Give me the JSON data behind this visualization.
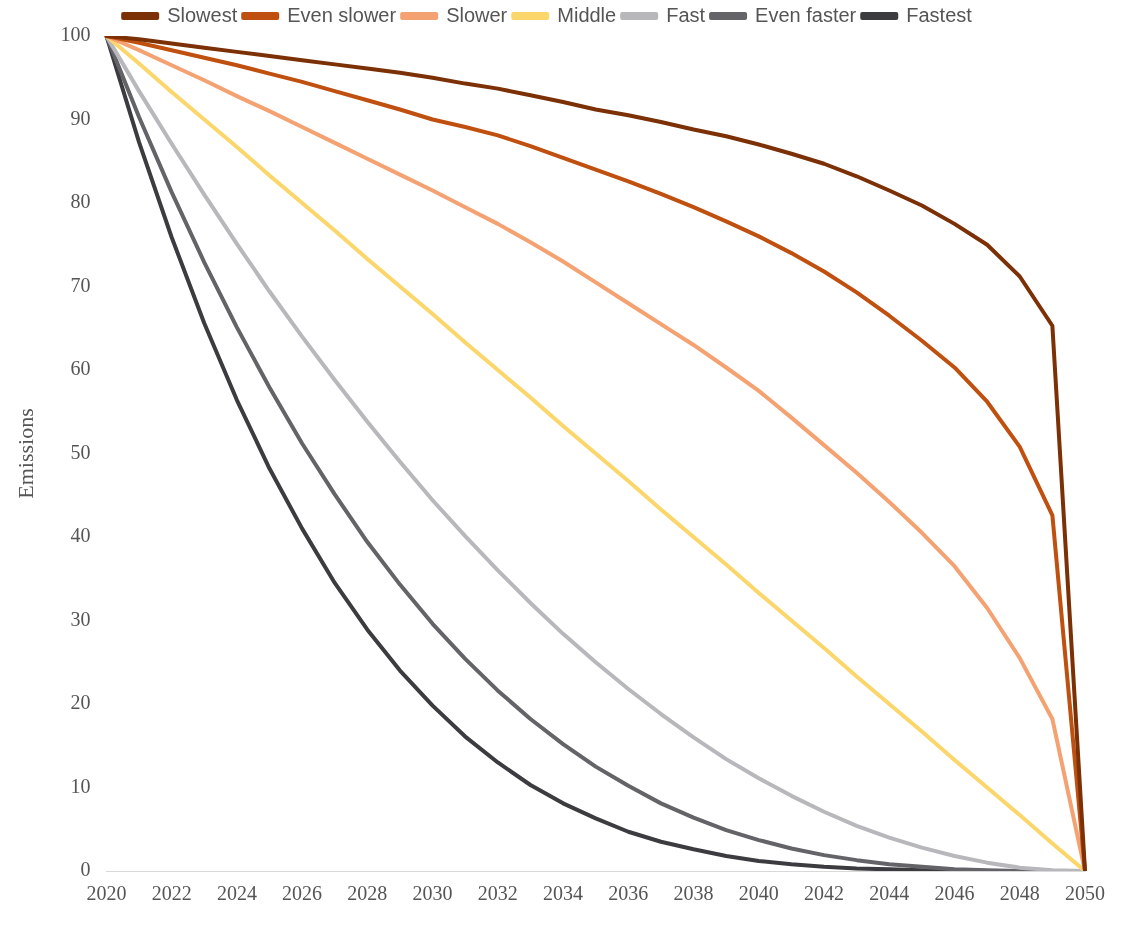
{
  "chart_data": {
    "type": "line",
    "ylabel": "Emissions",
    "categories": [
      "2020",
      null,
      "2022",
      null,
      "2024",
      null,
      "2026",
      null,
      "2028",
      null,
      "2030",
      null,
      "2032",
      null,
      "2034",
      null,
      "2036",
      null,
      "2038",
      null,
      "2040",
      null,
      "2042",
      null,
      "2044",
      null,
      "2046",
      null,
      "2048",
      null,
      "2050"
    ],
    "ylim": [
      0,
      100
    ],
    "yticks": [
      0,
      10,
      20,
      30,
      40,
      50,
      60,
      70,
      80,
      90,
      100
    ],
    "grid": false,
    "legend": "top",
    "marker": "none",
    "line_style": "solid",
    "series": [
      {
        "name": "Slowest",
        "color": "#7b3006",
        "values": [
          100,
          99.6,
          99.1,
          98.6,
          98.1,
          97.6,
          97.1,
          96.6,
          96.1,
          95.6,
          95,
          94.3,
          93.7,
          92.9,
          92.1,
          91.2,
          90.5,
          89.7,
          88.8,
          88,
          87,
          85.9,
          84.7,
          83.2,
          81.5,
          79.7,
          77.5,
          75,
          71.2,
          65.3,
          0
        ]
      },
      {
        "name": "Even slower",
        "color": "#c0500f",
        "values": [
          100,
          99.2,
          98.3,
          97.4,
          96.5,
          95.5,
          94.5,
          93.4,
          92.3,
          91.2,
          90,
          89.1,
          88.1,
          86.8,
          85.4,
          84,
          82.6,
          81.1,
          79.5,
          77.8,
          76,
          74,
          71.8,
          69.3,
          66.5,
          63.5,
          60.3,
          56.2,
          50.8,
          42.6,
          0
        ]
      },
      {
        "name": "Slower",
        "color": "#f4a272",
        "values": [
          100,
          98.3,
          96.5,
          94.7,
          92.8,
          91,
          89.1,
          87.2,
          85.3,
          83.4,
          81.5,
          79.5,
          77.5,
          75.3,
          73,
          70.5,
          68,
          65.5,
          63,
          60.3,
          57.5,
          54.3,
          51,
          47.7,
          44.2,
          40.5,
          36.5,
          31.5,
          25.5,
          18.2,
          0
        ]
      },
      {
        "name": "Middle",
        "color": "#fbd66a",
        "values": [
          100,
          96.7,
          93.3,
          90,
          86.7,
          83.3,
          80,
          76.7,
          73.3,
          70,
          66.7,
          63.3,
          60,
          56.7,
          53.3,
          50,
          46.7,
          43.3,
          40,
          36.7,
          33.3,
          30,
          26.7,
          23.3,
          20,
          16.7,
          13.3,
          10,
          6.7,
          3.3,
          0
        ]
      },
      {
        "name": "Fast",
        "color": "#b8b8bc",
        "values": [
          100,
          93.4,
          87.1,
          81,
          75.1,
          69.4,
          64,
          58.8,
          53.8,
          49,
          44.4,
          40.1,
          36,
          32.1,
          28.4,
          25,
          21.8,
          18.8,
          16,
          13.4,
          11.1,
          9,
          7.1,
          5.4,
          4,
          2.8,
          1.8,
          1,
          0.4,
          0.1,
          0
        ]
      },
      {
        "name": "Even faster",
        "color": "#646468",
        "values": [
          100,
          90.3,
          81.3,
          72.9,
          65.1,
          57.9,
          51.2,
          45.1,
          39.4,
          34.3,
          29.6,
          25.4,
          21.6,
          18.2,
          15.2,
          12.5,
          10.2,
          8.1,
          6.4,
          4.9,
          3.7,
          2.7,
          1.9,
          1.3,
          0.8,
          0.5,
          0.2,
          0.1,
          0,
          0,
          0
        ]
      },
      {
        "name": "Fastest",
        "color": "#3c3c40",
        "values": [
          100,
          87.3,
          75.9,
          65.6,
          56.4,
          48.2,
          41,
          34.5,
          28.9,
          24,
          19.8,
          16.1,
          13,
          10.3,
          8.1,
          6.3,
          4.7,
          3.5,
          2.6,
          1.8,
          1.2,
          0.8,
          0.5,
          0.3,
          0.2,
          0.1,
          0,
          0,
          0,
          0,
          0
        ]
      }
    ]
  }
}
